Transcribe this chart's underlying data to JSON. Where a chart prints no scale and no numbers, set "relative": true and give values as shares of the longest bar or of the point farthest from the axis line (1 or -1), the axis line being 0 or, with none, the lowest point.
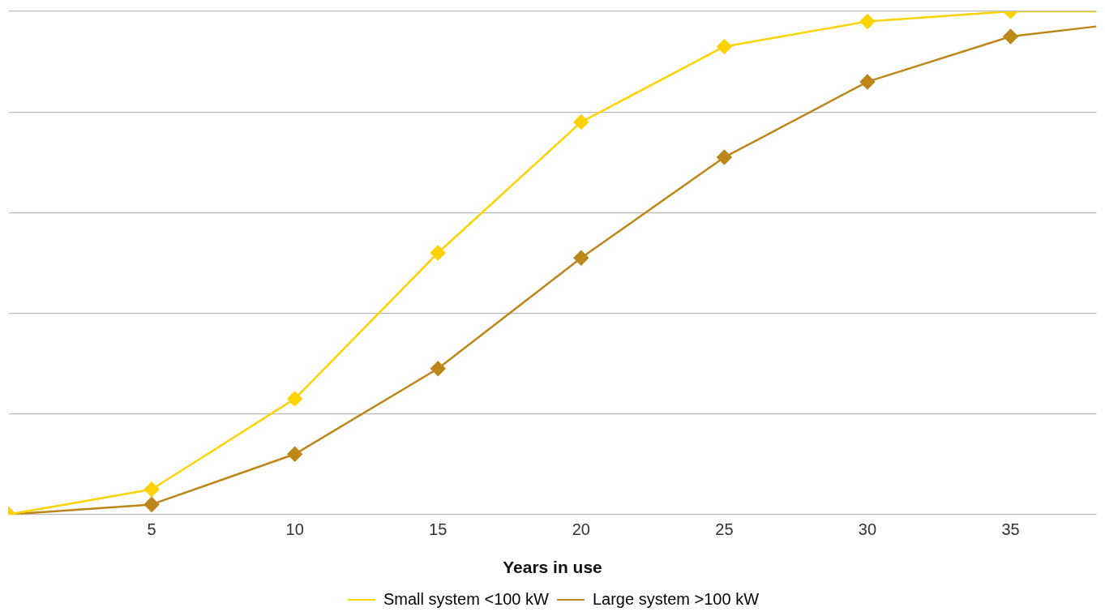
{
  "chart_data": {
    "type": "line",
    "relative": true,
    "xlabel": "Years in use",
    "x": [
      0,
      5,
      10,
      15,
      20,
      25,
      30,
      35,
      38
    ],
    "xlim": [
      0,
      38
    ],
    "xticks": [
      5,
      10,
      15,
      20,
      25,
      30,
      35
    ],
    "grid": "y",
    "legend": "bottom",
    "marker": "diamond",
    "series": [
      {
        "name": "Small system <100 kW",
        "color": "#fcd200",
        "values": [
          0,
          0.05,
          0.23,
          0.52,
          0.78,
          0.93,
          0.98,
          1,
          1
        ]
      },
      {
        "name": "Large system >100 kW",
        "color": "#bd8618",
        "values": [
          0,
          0.02,
          0.12,
          0.29,
          0.51,
          0.71,
          0.86,
          0.95,
          0.97
        ]
      }
    ]
  }
}
